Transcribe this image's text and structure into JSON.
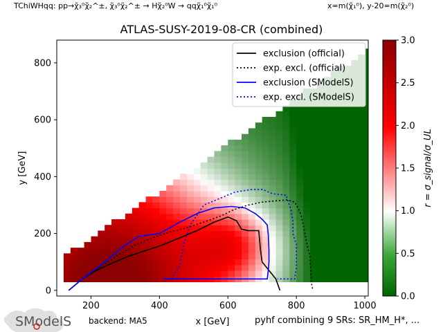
{
  "header": {
    "top_left": "TChiWHqq: pp→χ̃₃⁰χ̃₂^±, χ̃₃⁰χ̃₂^± → Hχ̃₂⁰W → qqχ̃₁⁰χ̃₁⁰",
    "top_right": "x=m(χ̃₁⁰), y-20=m(χ̃₂⁰)"
  },
  "footer": {
    "logo": "SModelS",
    "backend": "backend: MA5",
    "note": "pyhf combining 9 SRs: SR_HM_H*, ..."
  },
  "chart_data": {
    "type": "heatmap",
    "title": "ATLAS-SUSY-2019-08-CR (combined)",
    "xlabel": "x [GeV]",
    "ylabel": "y [GeV]",
    "xlim": [
      100,
      1010
    ],
    "ylim": [
      -20,
      880
    ],
    "xticks": [
      200,
      400,
      600,
      800,
      1000
    ],
    "yticks": [
      0,
      200,
      400,
      600,
      800
    ],
    "colorbar": {
      "label": "r = σ_signal/σ_UL",
      "range": [
        0.0,
        3.0
      ],
      "ticks": [
        0.0,
        0.5,
        1.0,
        1.5,
        2.0,
        2.5,
        3.0
      ],
      "colors": [
        "#006400",
        "#ffffff",
        "#ff0000",
        "#8b0000"
      ]
    },
    "grid": false,
    "legend_position": "top-right",
    "legend": [
      {
        "label": "exclusion (official)",
        "color": "#000000",
        "style": "solid"
      },
      {
        "label": "exp. excl. (official)",
        "color": "#000000",
        "style": "dotted"
      },
      {
        "label": "exclusion (SModelS)",
        "color": "#0000ff",
        "style": "solid"
      },
      {
        "label": "exp. excl. (SModelS)",
        "color": "#0000ff",
        "style": "dotted"
      }
    ],
    "series": [
      {
        "name": "exclusion (official)",
        "points": [
          [
            135,
            0
          ],
          [
            175,
            40
          ],
          [
            215,
            70
          ],
          [
            260,
            95
          ],
          [
            310,
            120
          ],
          [
            360,
            140
          ],
          [
            410,
            160
          ],
          [
            460,
            185
          ],
          [
            510,
            210
          ],
          [
            560,
            240
          ],
          [
            600,
            258
          ],
          [
            625,
            245
          ],
          [
            640,
            215
          ],
          [
            660,
            210
          ],
          [
            690,
            210
          ],
          [
            695,
            145
          ],
          [
            700,
            100
          ],
          [
            720,
            70
          ],
          [
            740,
            40
          ],
          [
            752,
            0
          ]
        ]
      },
      {
        "name": "exp. excl. (official)",
        "points": [
          [
            135,
            0
          ],
          [
            180,
            45
          ],
          [
            230,
            85
          ],
          [
            280,
            125
          ],
          [
            330,
            160
          ],
          [
            380,
            185
          ],
          [
            430,
            205
          ],
          [
            480,
            220
          ],
          [
            530,
            240
          ],
          [
            580,
            262
          ],
          [
            620,
            285
          ],
          [
            660,
            300
          ],
          [
            700,
            310
          ],
          [
            740,
            315
          ],
          [
            775,
            318
          ],
          [
            795,
            310
          ],
          [
            805,
            290
          ],
          [
            815,
            260
          ],
          [
            825,
            200
          ],
          [
            833,
            150
          ],
          [
            840,
            120
          ],
          [
            842,
            70
          ],
          [
            845,
            20
          ],
          [
            848,
            0
          ]
        ]
      },
      {
        "name": "exclusion (SModelS)",
        "points": [
          [
            135,
            0
          ],
          [
            175,
            40
          ],
          [
            230,
            90
          ],
          [
            290,
            150
          ],
          [
            340,
            190
          ],
          [
            400,
            200
          ],
          [
            460,
            240
          ],
          [
            510,
            270
          ],
          [
            560,
            290
          ],
          [
            610,
            295
          ],
          [
            650,
            290
          ],
          [
            680,
            270
          ],
          [
            700,
            250
          ],
          [
            715,
            230
          ],
          [
            718,
            195
          ],
          [
            720,
            140
          ],
          [
            720,
            100
          ],
          [
            718,
            70
          ],
          [
            715,
            40
          ],
          [
            410,
            40
          ]
        ]
      },
      {
        "name": "exp. excl. (SModelS)",
        "points": [
          [
            435,
            40
          ],
          [
            460,
            90
          ],
          [
            470,
            160
          ],
          [
            490,
            230
          ],
          [
            530,
            300
          ],
          [
            570,
            320
          ],
          [
            620,
            345
          ],
          [
            670,
            355
          ],
          [
            700,
            355
          ],
          [
            730,
            340
          ],
          [
            770,
            335
          ],
          [
            785,
            280
          ],
          [
            790,
            240
          ],
          [
            790,
            200
          ],
          [
            800,
            160
          ],
          [
            800,
            120
          ],
          [
            800,
            80
          ],
          [
            795,
            40
          ],
          [
            745,
            40
          ]
        ]
      }
    ]
  }
}
